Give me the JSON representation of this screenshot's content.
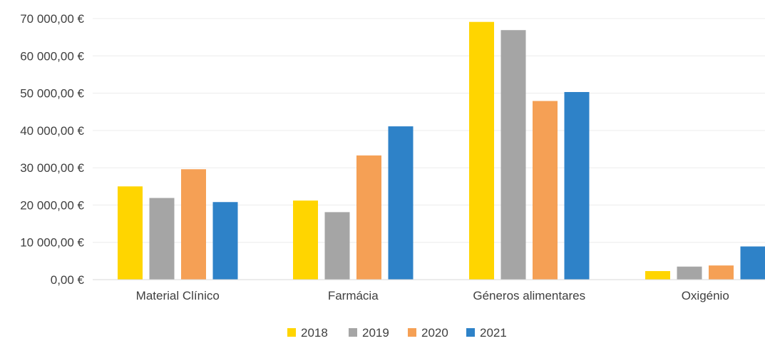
{
  "chart_data": {
    "type": "bar",
    "title": "",
    "xlabel": "",
    "ylabel": "",
    "categories": [
      "Material Clínico",
      "Farmácia",
      "Géneros alimentares",
      "Oxigénio"
    ],
    "series": [
      {
        "name": "2018",
        "color": "#FFD500",
        "values": [
          25000,
          21200,
          69100,
          2300
        ]
      },
      {
        "name": "2019",
        "color": "#A5A5A5",
        "values": [
          21900,
          18100,
          66900,
          3500
        ]
      },
      {
        "name": "2020",
        "color": "#F5A055",
        "values": [
          29600,
          33300,
          47900,
          3800
        ]
      },
      {
        "name": "2021",
        "color": "#2E82C8",
        "values": [
          20800,
          41100,
          50300,
          8900
        ]
      }
    ],
    "yticks": [
      {
        "value": 0,
        "label": "0,00 €"
      },
      {
        "value": 10000,
        "label": "10 000,00 €"
      },
      {
        "value": 20000,
        "label": "20 000,00 €"
      },
      {
        "value": 30000,
        "label": "30 000,00 €"
      },
      {
        "value": 40000,
        "label": "40 000,00 €"
      },
      {
        "value": 50000,
        "label": "50 000,00 €"
      },
      {
        "value": 60000,
        "label": "60 000,00 €"
      },
      {
        "value": 70000,
        "label": "70 000,00 €"
      }
    ],
    "ylim": [
      0,
      70000
    ],
    "grid": true,
    "legend_position": "bottom"
  }
}
